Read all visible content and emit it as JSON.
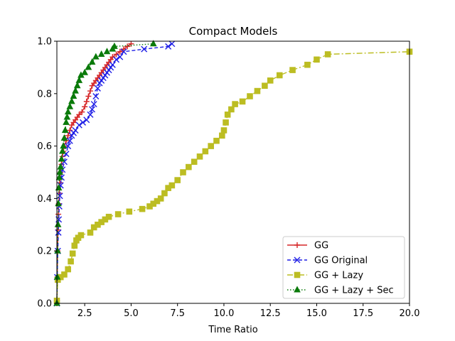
{
  "chart_data": {
    "type": "line",
    "title": "Compact Models",
    "xlabel": "Time Ratio",
    "ylabel": "",
    "xlim": [
      1.0,
      20.0
    ],
    "ylim": [
      0.0,
      1.0
    ],
    "xticks": [
      "2.5",
      "5.0",
      "7.5",
      "10.0",
      "12.5",
      "15.0",
      "17.5",
      "20.0"
    ],
    "xtick_values": [
      2.5,
      5.0,
      7.5,
      10.0,
      12.5,
      15.0,
      17.5,
      20.0
    ],
    "yticks": [
      "0.0",
      "0.2",
      "0.4",
      "0.6",
      "0.8",
      "1.0"
    ],
    "ytick_values": [
      0.0,
      0.2,
      0.4,
      0.6,
      0.8,
      1.0
    ],
    "grid": false,
    "legend_position": "lower-right",
    "series": [
      {
        "name": "GG",
        "color": "#d62728",
        "linestyle": "solid",
        "marker": "plus",
        "x": [
          1.0,
          1.02,
          1.04,
          1.06,
          1.08,
          1.1,
          1.13,
          1.16,
          1.2,
          1.25,
          1.3,
          1.35,
          1.4,
          1.5,
          1.6,
          1.7,
          1.8,
          1.9,
          2.0,
          2.1,
          2.2,
          2.35,
          2.5,
          2.6,
          2.7,
          2.8,
          2.9,
          3.0,
          3.1,
          3.2,
          3.3,
          3.4,
          3.5,
          3.6,
          3.7,
          3.8,
          3.9,
          4.0,
          4.2,
          4.4,
          4.6,
          4.8,
          5.0
        ],
        "y": [
          0.0,
          0.1,
          0.2,
          0.28,
          0.34,
          0.38,
          0.42,
          0.46,
          0.5,
          0.53,
          0.56,
          0.58,
          0.6,
          0.62,
          0.64,
          0.66,
          0.68,
          0.69,
          0.7,
          0.71,
          0.72,
          0.73,
          0.75,
          0.77,
          0.79,
          0.81,
          0.83,
          0.84,
          0.85,
          0.86,
          0.87,
          0.88,
          0.89,
          0.9,
          0.91,
          0.92,
          0.93,
          0.94,
          0.95,
          0.96,
          0.97,
          0.98,
          0.99
        ]
      },
      {
        "name": "GG Original",
        "color": "#1f1fe6",
        "linestyle": "dashed",
        "marker": "x",
        "x": [
          1.0,
          1.02,
          1.05,
          1.08,
          1.1,
          1.13,
          1.16,
          1.2,
          1.25,
          1.3,
          1.4,
          1.5,
          1.6,
          1.7,
          1.8,
          1.9,
          2.0,
          2.2,
          2.4,
          2.6,
          2.8,
          2.9,
          3.0,
          3.1,
          3.2,
          3.3,
          3.4,
          3.5,
          3.6,
          3.7,
          3.8,
          3.9,
          4.0,
          4.2,
          4.4,
          4.6,
          5.7,
          7.0,
          7.2
        ],
        "y": [
          0.0,
          0.1,
          0.2,
          0.27,
          0.32,
          0.37,
          0.41,
          0.45,
          0.48,
          0.51,
          0.54,
          0.57,
          0.6,
          0.62,
          0.64,
          0.65,
          0.66,
          0.68,
          0.69,
          0.7,
          0.72,
          0.74,
          0.76,
          0.79,
          0.82,
          0.84,
          0.85,
          0.86,
          0.87,
          0.88,
          0.89,
          0.9,
          0.91,
          0.93,
          0.94,
          0.96,
          0.97,
          0.98,
          0.99
        ]
      },
      {
        "name": "GG + Lazy",
        "color": "#bcbd22",
        "linestyle": "dashdot",
        "marker": "square",
        "x": [
          1.0,
          1.05,
          1.2,
          1.4,
          1.6,
          1.75,
          1.85,
          1.95,
          2.05,
          2.15,
          2.3,
          2.8,
          3.0,
          3.2,
          3.4,
          3.6,
          3.8,
          4.3,
          4.9,
          5.6,
          6.0,
          6.2,
          6.4,
          6.6,
          6.8,
          7.0,
          7.2,
          7.5,
          7.8,
          8.1,
          8.4,
          8.7,
          9.0,
          9.3,
          9.6,
          9.9,
          10.0,
          10.1,
          10.2,
          10.4,
          10.6,
          11.0,
          11.4,
          11.8,
          12.2,
          12.5,
          13.0,
          13.7,
          14.5,
          15.0,
          15.6,
          20.0
        ],
        "y": [
          0.01,
          0.09,
          0.1,
          0.11,
          0.13,
          0.16,
          0.19,
          0.22,
          0.24,
          0.25,
          0.26,
          0.27,
          0.29,
          0.3,
          0.31,
          0.32,
          0.33,
          0.34,
          0.35,
          0.36,
          0.37,
          0.38,
          0.39,
          0.4,
          0.42,
          0.44,
          0.45,
          0.47,
          0.5,
          0.52,
          0.54,
          0.56,
          0.58,
          0.6,
          0.62,
          0.64,
          0.66,
          0.69,
          0.72,
          0.74,
          0.76,
          0.77,
          0.79,
          0.81,
          0.83,
          0.85,
          0.87,
          0.89,
          0.91,
          0.93,
          0.95,
          0.96
        ]
      },
      {
        "name": "GG + Lazy + Sec",
        "color": "#0a7a0a",
        "linestyle": "dotted",
        "marker": "triangle-up",
        "x": [
          1.0,
          1.02,
          1.04,
          1.06,
          1.08,
          1.1,
          1.13,
          1.16,
          1.2,
          1.25,
          1.3,
          1.35,
          1.4,
          1.45,
          1.5,
          1.55,
          1.6,
          1.7,
          1.8,
          1.9,
          2.0,
          2.1,
          2.2,
          2.3,
          2.5,
          2.7,
          2.9,
          3.1,
          3.4,
          3.7,
          4.0,
          4.1,
          6.2
        ],
        "y": [
          0.0,
          0.1,
          0.2,
          0.3,
          0.38,
          0.44,
          0.48,
          0.5,
          0.52,
          0.55,
          0.58,
          0.6,
          0.63,
          0.66,
          0.69,
          0.71,
          0.73,
          0.75,
          0.77,
          0.79,
          0.81,
          0.83,
          0.85,
          0.87,
          0.88,
          0.9,
          0.92,
          0.94,
          0.95,
          0.96,
          0.97,
          0.98,
          0.99
        ]
      }
    ]
  }
}
